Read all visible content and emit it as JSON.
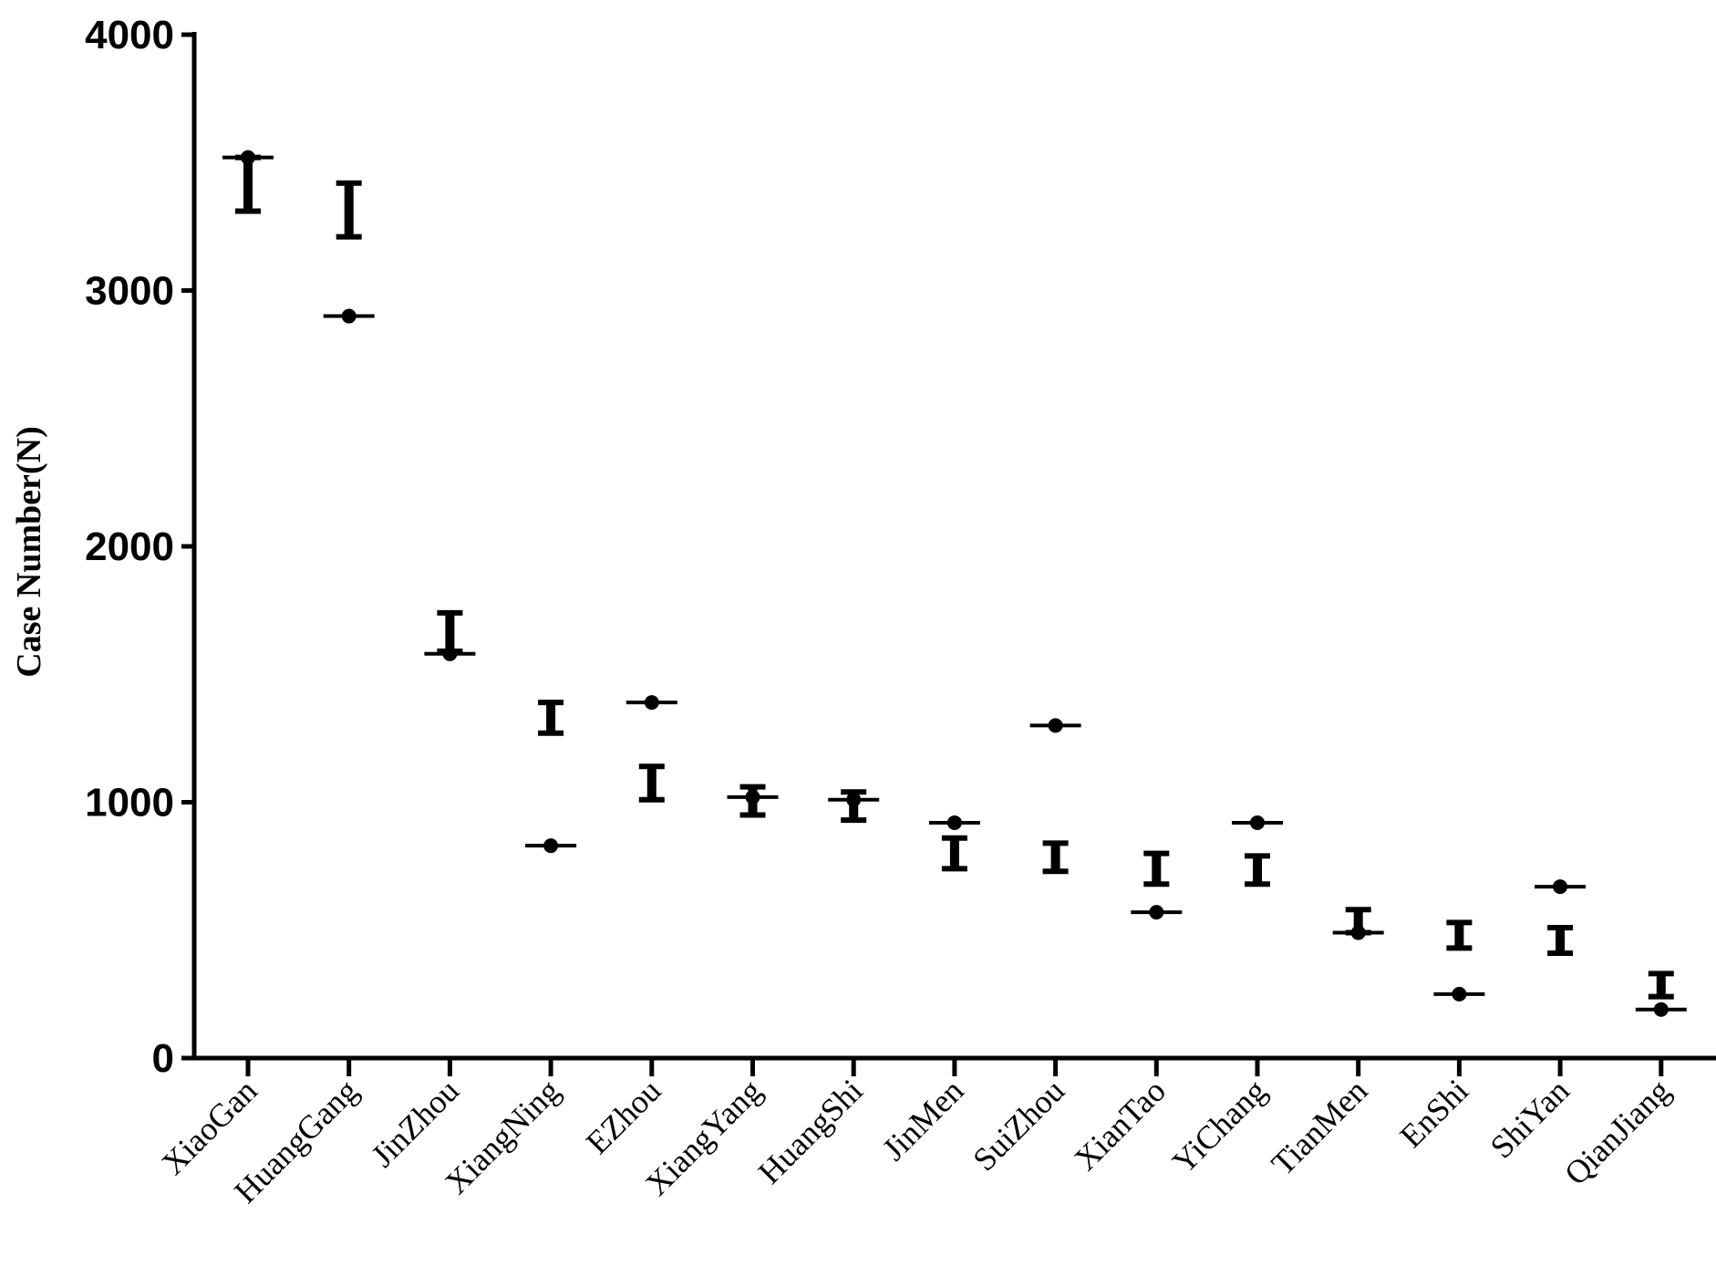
{
  "chart_data": {
    "type": "scatter",
    "title": "",
    "xlabel": "",
    "ylabel": "Case Number(N)",
    "ylim": [
      0,
      4000
    ],
    "yticks": [
      "0",
      "1000",
      "2000",
      "3000",
      "4000"
    ],
    "grid": false,
    "legend": "none",
    "categories": [
      "XiaoGan",
      "HuangGang",
      "JinZhou",
      "XiangNing",
      "EZhou",
      "XiangYang",
      "HuangShi",
      "JinMen",
      "SuiZhou",
      "XianTao",
      "YiChang",
      "TianMen",
      "EnShi",
      "ShiYan",
      "QianJiang"
    ],
    "series": [
      {
        "marker": "dot-with-line",
        "values": [
          3520,
          2900,
          1580,
          830,
          1390,
          1020,
          1010,
          920,
          1300,
          570,
          920,
          490,
          250,
          670,
          190
        ]
      },
      {
        "marker": "interval",
        "intervals": [
          [
            3310,
            3520
          ],
          [
            3210,
            3420
          ],
          [
            1590,
            1740
          ],
          [
            1270,
            1390
          ],
          [
            1010,
            1140
          ],
          [
            950,
            1060
          ],
          [
            930,
            1040
          ],
          [
            740,
            860
          ],
          [
            730,
            840
          ],
          [
            680,
            800
          ],
          [
            680,
            790
          ],
          [
            490,
            580
          ],
          [
            430,
            530
          ],
          [
            410,
            510
          ],
          [
            240,
            330
          ]
        ]
      }
    ],
    "colors": {
      "marks": "#000000",
      "background": "#ffffff"
    }
  }
}
